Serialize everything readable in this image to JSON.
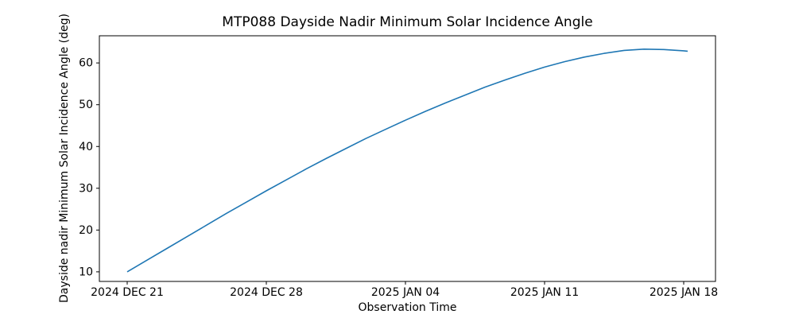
{
  "chart_data": {
    "type": "line",
    "title": "MTP088 Dayside Nadir Minimum Solar Incidence Angle",
    "xlabel": "Observation Time",
    "ylabel": "Dayside nadir Minimum Solar Incidence Angle (deg)",
    "grid": false,
    "legend": "none",
    "line_color": "#1f77b4",
    "x_ticks": [
      {
        "t": 0,
        "label": "2024 DEC 21"
      },
      {
        "t": 7,
        "label": "2024 DEC 28"
      },
      {
        "t": 14,
        "label": "2025 JAN 04"
      },
      {
        "t": 21,
        "label": "2025 JAN 11"
      },
      {
        "t": 28,
        "label": "2025 JAN 18"
      }
    ],
    "y_ticks": [
      10,
      20,
      30,
      40,
      50,
      60
    ],
    "xlim_days": [
      -1.4,
      29.6
    ],
    "ylim": [
      7.7,
      66.5
    ],
    "series": [
      {
        "name": "dayside-nadir-minimum-solar-incidence-angle",
        "x_days_from_2024_dec_21": [
          0,
          1,
          2,
          3,
          4,
          5,
          6,
          7,
          8,
          9,
          10,
          11,
          12,
          13,
          14,
          15,
          16,
          17,
          18,
          19,
          20,
          21,
          22,
          23,
          24,
          25,
          26,
          27,
          28,
          28.2
        ],
        "y_deg": [
          10.0,
          12.8,
          15.6,
          18.4,
          21.2,
          24.0,
          26.7,
          29.4,
          32.0,
          34.6,
          37.1,
          39.5,
          41.9,
          44.1,
          46.3,
          48.4,
          50.4,
          52.3,
          54.2,
          55.9,
          57.5,
          59.0,
          60.3,
          61.4,
          62.3,
          63.0,
          63.3,
          63.2,
          62.9,
          62.8
        ]
      }
    ]
  }
}
